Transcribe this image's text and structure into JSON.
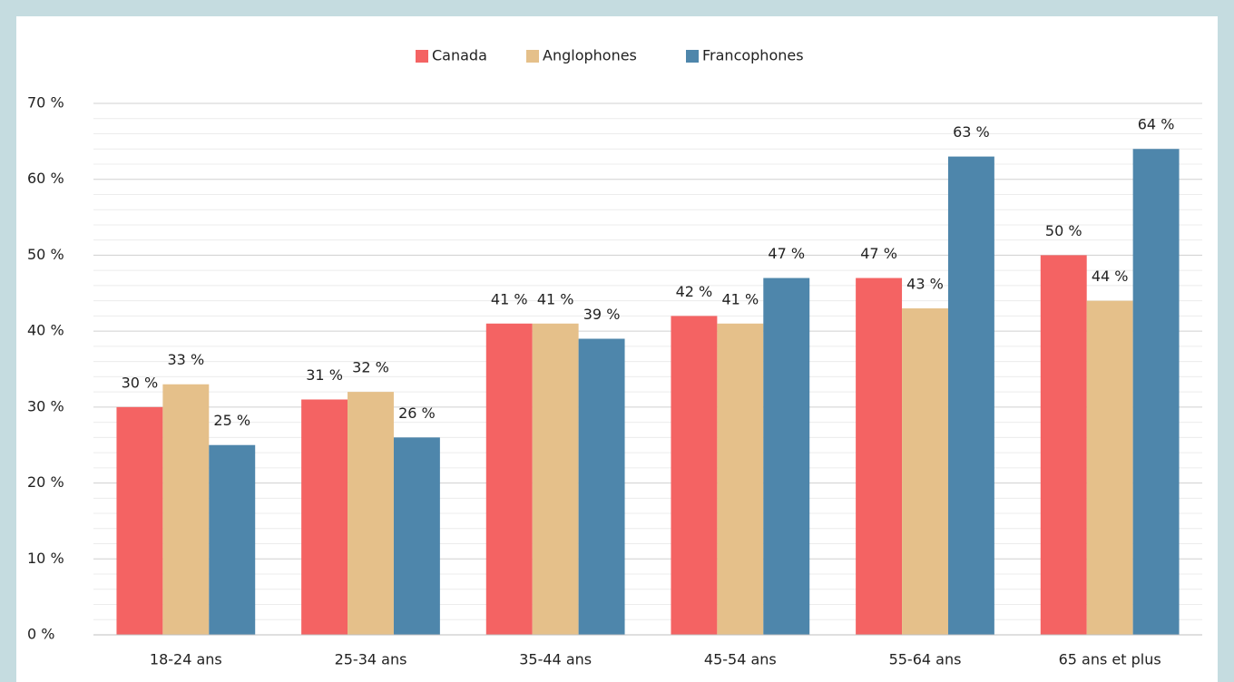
{
  "chart_data": {
    "type": "bar",
    "categories": [
      "18-24 ans",
      "25-34 ans",
      "35-44 ans",
      "45-54 ans",
      "55-64 ans",
      "65 ans et plus"
    ],
    "series": [
      {
        "name": "Canada",
        "color": "#f46363",
        "values": [
          30,
          31,
          41,
          42,
          47,
          50
        ],
        "value_labels": [
          "30 %",
          "31 %",
          "41 %",
          "42 %",
          "47 %",
          "50 %"
        ]
      },
      {
        "name": "Anglophones",
        "color": "#e5c08a",
        "values": [
          33,
          32,
          41,
          41,
          43,
          44
        ],
        "value_labels": [
          "33 %",
          "32 %",
          "41 %",
          "41 %",
          "43 %",
          "44 %"
        ]
      },
      {
        "name": "Francophones",
        "color": "#4e86ab",
        "values": [
          25,
          26,
          39,
          47,
          63,
          64
        ],
        "value_labels": [
          "25 %",
          "26 %",
          "39 %",
          "47 %",
          "63 %",
          "64 %"
        ]
      }
    ],
    "ylim": [
      0,
      70
    ],
    "yticks": [
      {
        "value": 0,
        "label": "0 %"
      },
      {
        "value": 10,
        "label": "10 %"
      },
      {
        "value": 20,
        "label": "20 %"
      },
      {
        "value": 30,
        "label": "30 %"
      },
      {
        "value": 40,
        "label": "40 %"
      },
      {
        "value": 50,
        "label": "50 %"
      },
      {
        "value": 60,
        "label": "60 %"
      },
      {
        "value": 70,
        "label": "70 %"
      }
    ],
    "minor_yticks": [
      2,
      4,
      6,
      8,
      12,
      14,
      16,
      18,
      22,
      24,
      26,
      28,
      32,
      34,
      36,
      38,
      42,
      44,
      46,
      48,
      52,
      54,
      56,
      58,
      62,
      64,
      66,
      68
    ],
    "grid": true,
    "legend": "top"
  }
}
